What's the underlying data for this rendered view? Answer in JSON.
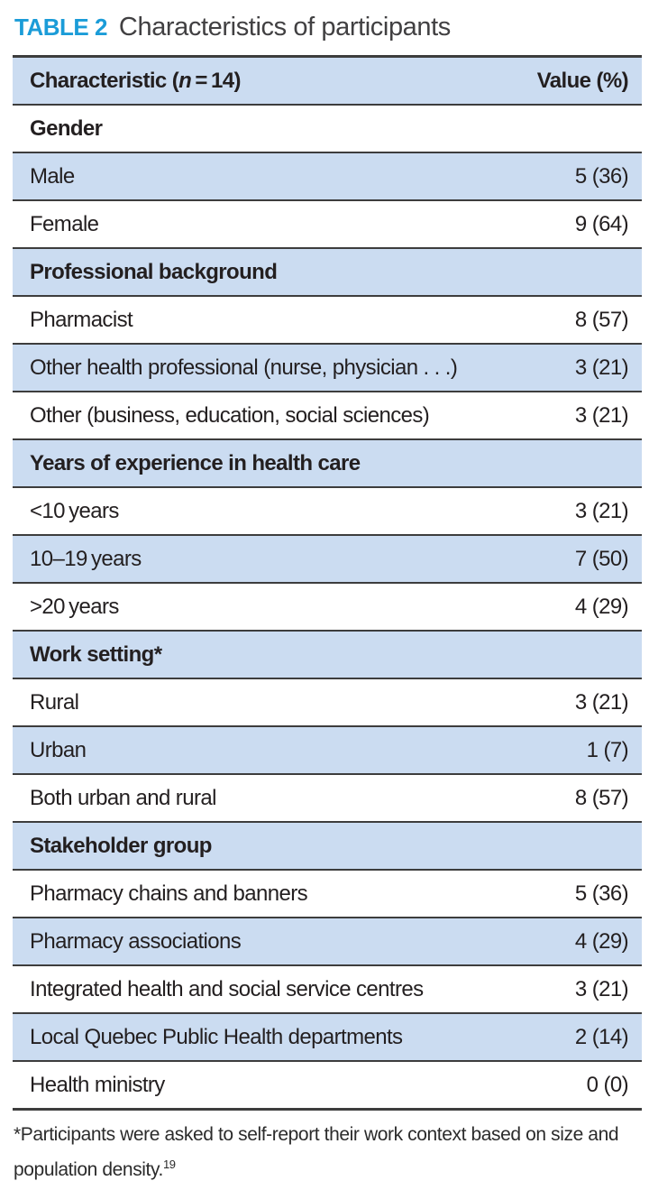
{
  "title": {
    "label": "TABLE 2",
    "caption": "Characteristics of participants"
  },
  "table": {
    "header": {
      "characteristic_prefix": "Characteristic (",
      "characteristic_n": "n",
      "characteristic_suffix": " = 14)",
      "value": "Value (%)"
    },
    "rows": [
      {
        "type": "section",
        "label": "Gender",
        "value": ""
      },
      {
        "type": "item",
        "label": "Male",
        "value": "5 (36)"
      },
      {
        "type": "item",
        "label": "Female",
        "value": "9 (64)"
      },
      {
        "type": "section",
        "label": "Professional background",
        "value": ""
      },
      {
        "type": "item",
        "label": "Pharmacist",
        "value": "8 (57)"
      },
      {
        "type": "item",
        "label": "Other health professional (nurse, physician . . .)",
        "value": "3 (21)"
      },
      {
        "type": "item",
        "label": "Other (business, education, social sciences)",
        "value": "3 (21)"
      },
      {
        "type": "section",
        "label": "Years of experience in health care",
        "value": ""
      },
      {
        "type": "item",
        "label": "<10 years",
        "value": "3 (21)"
      },
      {
        "type": "item",
        "label": "10–19 years",
        "value": "7 (50)"
      },
      {
        "type": "item",
        "label": ">20 years",
        "value": "4 (29)"
      },
      {
        "type": "section",
        "label": "Work setting*",
        "value": ""
      },
      {
        "type": "item",
        "label": "Rural",
        "value": "3 (21)"
      },
      {
        "type": "item",
        "label": "Urban",
        "value": "1 (7)"
      },
      {
        "type": "item",
        "label": "Both urban and rural",
        "value": "8 (57)"
      },
      {
        "type": "section",
        "label": "Stakeholder group",
        "value": ""
      },
      {
        "type": "item",
        "label": "Pharmacy chains and banners",
        "value": "5 (36)"
      },
      {
        "type": "item",
        "label": "Pharmacy associations",
        "value": "4 (29)"
      },
      {
        "type": "item",
        "label": "Integrated health and social service centres",
        "value": "3 (21)"
      },
      {
        "type": "item",
        "label": "Local Quebec Public Health departments",
        "value": "2 (14)"
      },
      {
        "type": "item",
        "label": "Health ministry",
        "value": "0 (0)"
      }
    ]
  },
  "footnote": {
    "text": "*Participants were asked to self-report their work context based on size and population density.",
    "reference": "19"
  },
  "colors": {
    "row_blue": "#cbdcf1",
    "rule_gray": "#3d3d3d",
    "title_blue": "#1b9cd8",
    "text_dark": "#231f20"
  }
}
